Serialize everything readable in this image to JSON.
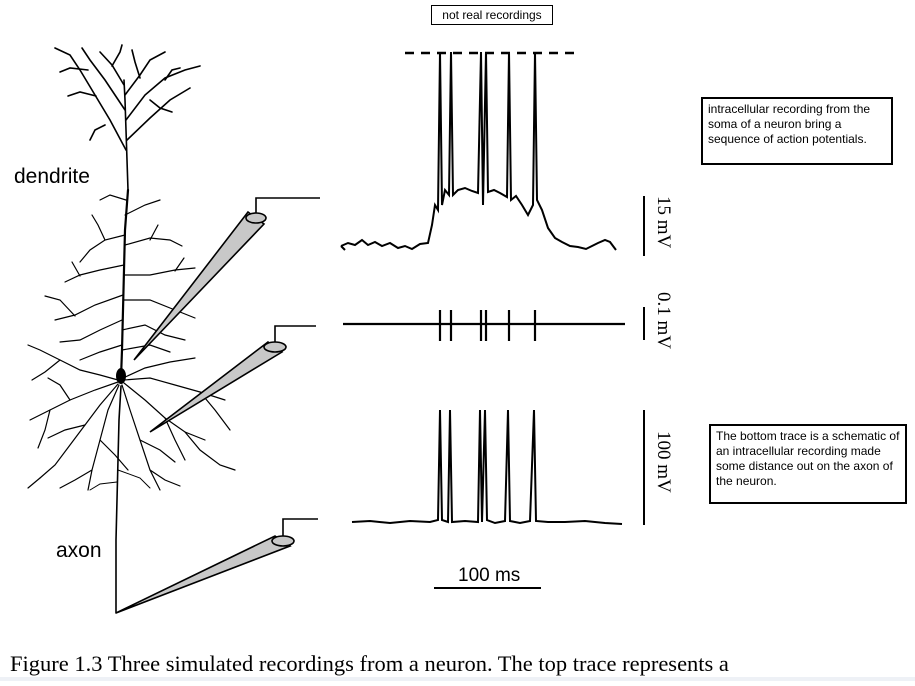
{
  "header": {
    "label": "not real recordings"
  },
  "labels": {
    "dendrite": "dendrite",
    "axon": "axon",
    "scale_time": "100 ms",
    "scale_top": "15 mV",
    "scale_mid": "0.1 mV",
    "scale_bottom": "100 mV"
  },
  "notes": {
    "top": "intracellular recording from the soma of a neuron bring a sequence of action potentials.",
    "bottom": "The bottom trace is a schematic of an intracellular recording made some distance out on the axon of the neuron."
  },
  "caption": "Figure 1.3 Three simulated recordings from a neuron.  The top trace represents a",
  "spikes": {
    "count": 6
  }
}
